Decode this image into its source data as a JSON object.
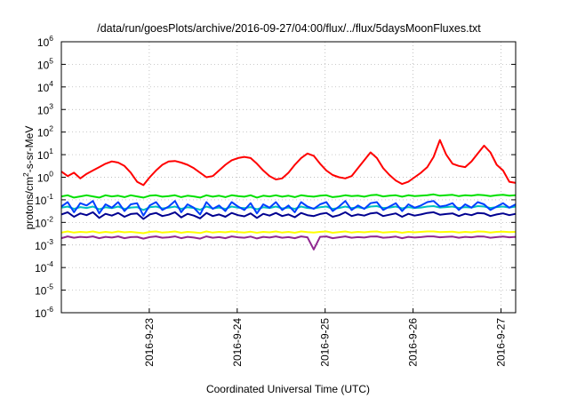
{
  "chart_data": {
    "type": "line",
    "title": "/data/run/goesPlots/archive/2016-09-27/04:00/flux/../flux/5daysMoonFluxes.txt",
    "xlabel": "Coordinated Universal Time (UTC)",
    "ylabel": {
      "pre": "protons/cm",
      "sup": "2",
      "post": "-s-sr-MeV"
    },
    "x_range": [
      "2016-09-22 00:00",
      "2016-09-27 04:00"
    ],
    "y_scale": "log",
    "ylim": [
      1e-06,
      1000000.0
    ],
    "grid": true,
    "x_ticks": [
      "2016-9-23",
      "2016-9-24",
      "2016-9-25",
      "2016-9-26",
      "2016-9-27"
    ],
    "y_ticks": [
      {
        "base": "10",
        "exp": "-6"
      },
      {
        "base": "10",
        "exp": "-5"
      },
      {
        "base": "10",
        "exp": "-4"
      },
      {
        "base": "10",
        "exp": "-3"
      },
      {
        "base": "10",
        "exp": "-2"
      },
      {
        "base": "10",
        "exp": "-1"
      },
      {
        "base": "10",
        "exp": "0"
      },
      {
        "base": "10",
        "exp": "1"
      },
      {
        "base": "10",
        "exp": "2"
      },
      {
        "base": "10",
        "exp": "3"
      },
      {
        "base": "10",
        "exp": "4"
      },
      {
        "base": "10",
        "exp": "5"
      },
      {
        "base": "10",
        "exp": "6"
      }
    ],
    "series": [
      {
        "color": "#ff0000",
        "log10": [
          0.25,
          0.05,
          0.2,
          -0.05,
          0.15,
          0.3,
          0.45,
          0.6,
          0.7,
          0.65,
          0.5,
          0.2,
          -0.2,
          -0.35,
          0,
          0.3,
          0.55,
          0.7,
          0.72,
          0.65,
          0.55,
          0.4,
          0.2,
          0,
          0.05,
          0.3,
          0.55,
          0.75,
          0.85,
          0.9,
          0.85,
          0.6,
          0.3,
          0.05,
          -0.1,
          -0.05,
          0.2,
          0.55,
          0.85,
          1.05,
          0.95,
          0.6,
          0.3,
          0.1,
          0,
          -0.05,
          0.05,
          0.4,
          0.75,
          1.1,
          0.85,
          0.4,
          0.1,
          -0.15,
          -0.3,
          -0.2,
          0,
          0.2,
          0.45,
          0.9,
          1.65,
          1.0,
          0.6,
          0.5,
          0.45,
          0.7,
          1.05,
          1.4,
          1.1,
          0.55,
          0.3,
          -0.2,
          -0.25
        ]
      },
      {
        "color": "#00e000",
        "log10": [
          -0.85,
          -0.8,
          -0.9,
          -0.85,
          -0.8,
          -0.85,
          -0.9,
          -0.8,
          -0.85,
          -0.82,
          -0.88,
          -0.8,
          -0.85,
          -0.9,
          -0.82,
          -0.8,
          -0.86,
          -0.84,
          -0.8,
          -0.88,
          -0.82,
          -0.85,
          -0.9,
          -0.8,
          -0.86,
          -0.82,
          -0.88,
          -0.8,
          -0.84,
          -0.86,
          -0.8,
          -0.9,
          -0.82,
          -0.85,
          -0.8,
          -0.86,
          -0.82,
          -0.88,
          -0.8,
          -0.84,
          -0.86,
          -0.82,
          -0.8,
          -0.88,
          -0.85,
          -0.8,
          -0.84,
          -0.82,
          -0.86,
          -0.8,
          -0.78,
          -0.85,
          -0.82,
          -0.8,
          -0.86,
          -0.8,
          -0.84,
          -0.82,
          -0.8,
          -0.76,
          -0.82,
          -0.8,
          -0.78,
          -0.84,
          -0.8,
          -0.82,
          -0.78,
          -0.8,
          -0.84,
          -0.8,
          -0.78,
          -0.82,
          -0.8
        ]
      },
      {
        "color": "#00c0c0",
        "log10": [
          -1.35,
          -1.3,
          -1.4,
          -1.32,
          -1.36,
          -1.3,
          -1.42,
          -1.33,
          -1.37,
          -1.3,
          -1.4,
          -1.34,
          -1.32,
          -1.45,
          -1.33,
          -1.3,
          -1.38,
          -1.35,
          -1.3,
          -1.4,
          -1.33,
          -1.36,
          -1.44,
          -1.3,
          -1.38,
          -1.34,
          -1.4,
          -1.3,
          -1.35,
          -1.37,
          -1.32,
          -1.42,
          -1.33,
          -1.36,
          -1.3,
          -1.38,
          -1.34,
          -1.4,
          -1.3,
          -1.36,
          -1.38,
          -1.33,
          -1.3,
          -1.4,
          -1.36,
          -1.3,
          -1.37,
          -1.33,
          -1.38,
          -1.3,
          -1.28,
          -1.36,
          -1.34,
          -1.3,
          -1.38,
          -1.32,
          -1.36,
          -1.34,
          -1.3,
          -1.28,
          -1.34,
          -1.32,
          -1.3,
          -1.36,
          -1.32,
          -1.34,
          -1.28,
          -1.3,
          -1.36,
          -1.32,
          -1.3,
          -1.34,
          -1.3
        ]
      },
      {
        "color": "#0040ff",
        "log10": [
          -1.3,
          -1.1,
          -1.55,
          -1.15,
          -1.25,
          -1.05,
          -1.6,
          -1.2,
          -1.35,
          -1.1,
          -1.5,
          -1.2,
          -1.15,
          -1.7,
          -1.25,
          -1.1,
          -1.45,
          -1.3,
          -1.05,
          -1.55,
          -1.2,
          -1.35,
          -1.65,
          -1.1,
          -1.4,
          -1.25,
          -1.5,
          -1.1,
          -1.3,
          -1.45,
          -1.15,
          -1.6,
          -1.2,
          -1.35,
          -1.1,
          -1.45,
          -1.25,
          -1.55,
          -1.1,
          -1.3,
          -1.4,
          -1.2,
          -1.1,
          -1.5,
          -1.3,
          -1.05,
          -1.45,
          -1.25,
          -1.4,
          -1.15,
          -1.1,
          -1.45,
          -1.3,
          -1.15,
          -1.5,
          -1.2,
          -1.35,
          -1.25,
          -1.1,
          -1.05,
          -1.3,
          -1.25,
          -1.15,
          -1.45,
          -1.2,
          -1.35,
          -1.1,
          -1.2,
          -1.45,
          -1.3,
          -1.15,
          -1.35,
          -1.2
        ]
      },
      {
        "color": "#000090",
        "log10": [
          -1.65,
          -1.55,
          -1.75,
          -1.6,
          -1.68,
          -1.55,
          -1.8,
          -1.62,
          -1.7,
          -1.58,
          -1.75,
          -1.63,
          -1.6,
          -1.85,
          -1.65,
          -1.58,
          -1.72,
          -1.66,
          -1.55,
          -1.78,
          -1.62,
          -1.7,
          -1.82,
          -1.58,
          -1.72,
          -1.65,
          -1.75,
          -1.58,
          -1.68,
          -1.73,
          -1.6,
          -1.8,
          -1.62,
          -1.7,
          -1.58,
          -1.72,
          -1.65,
          -1.77,
          -1.58,
          -1.68,
          -1.72,
          -1.63,
          -1.58,
          -1.75,
          -1.68,
          -1.55,
          -1.72,
          -1.65,
          -1.7,
          -1.6,
          -1.57,
          -1.72,
          -1.66,
          -1.6,
          -1.75,
          -1.62,
          -1.7,
          -1.65,
          -1.58,
          -1.55,
          -1.66,
          -1.63,
          -1.6,
          -1.72,
          -1.62,
          -1.68,
          -1.58,
          -1.6,
          -1.72,
          -1.65,
          -1.6,
          -1.68,
          -1.62
        ]
      },
      {
        "color": "#ffff00",
        "log10": [
          -2.45,
          -2.4,
          -2.45,
          -2.42,
          -2.44,
          -2.4,
          -2.46,
          -2.42,
          -2.45,
          -2.4,
          -2.44,
          -2.42,
          -2.45,
          -2.48,
          -2.42,
          -2.4,
          -2.45,
          -2.43,
          -2.4,
          -2.46,
          -2.42,
          -2.44,
          -2.47,
          -2.4,
          -2.45,
          -2.42,
          -2.44,
          -2.4,
          -2.43,
          -2.45,
          -2.41,
          -2.46,
          -2.42,
          -2.44,
          -2.4,
          -2.45,
          -2.42,
          -2.46,
          -2.4,
          -2.43,
          -2.45,
          -2.42,
          -2.4,
          -2.46,
          -2.43,
          -2.4,
          -2.45,
          -2.42,
          -2.44,
          -2.41,
          -2.4,
          -2.45,
          -2.43,
          -2.41,
          -2.46,
          -2.42,
          -2.44,
          -2.42,
          -2.4,
          -2.4,
          -2.43,
          -2.42,
          -2.41,
          -2.45,
          -2.42,
          -2.44,
          -2.4,
          -2.41,
          -2.45,
          -2.42,
          -2.41,
          -2.43,
          -2.42
        ]
      },
      {
        "color": "#902890",
        "log10": [
          -2.7,
          -2.62,
          -2.68,
          -2.64,
          -2.66,
          -2.62,
          -2.7,
          -2.64,
          -2.67,
          -2.62,
          -2.7,
          -2.65,
          -2.64,
          -2.72,
          -2.65,
          -2.62,
          -2.68,
          -2.66,
          -2.62,
          -2.7,
          -2.64,
          -2.67,
          -2.72,
          -2.62,
          -2.68,
          -2.65,
          -2.7,
          -2.62,
          -2.66,
          -2.68,
          -2.63,
          -2.71,
          -2.64,
          -2.67,
          -2.62,
          -2.68,
          -2.65,
          -2.7,
          -2.62,
          -2.66,
          -3.2,
          -2.64,
          -2.62,
          -2.7,
          -2.66,
          -2.62,
          -2.68,
          -2.65,
          -2.67,
          -2.63,
          -2.62,
          -2.68,
          -2.66,
          -2.63,
          -2.7,
          -2.64,
          -2.67,
          -2.65,
          -2.62,
          -2.62,
          -2.66,
          -2.64,
          -2.63,
          -2.68,
          -2.64,
          -2.66,
          -2.62,
          -2.63,
          -2.68,
          -2.65,
          -2.63,
          -2.66,
          -2.64
        ]
      }
    ]
  }
}
